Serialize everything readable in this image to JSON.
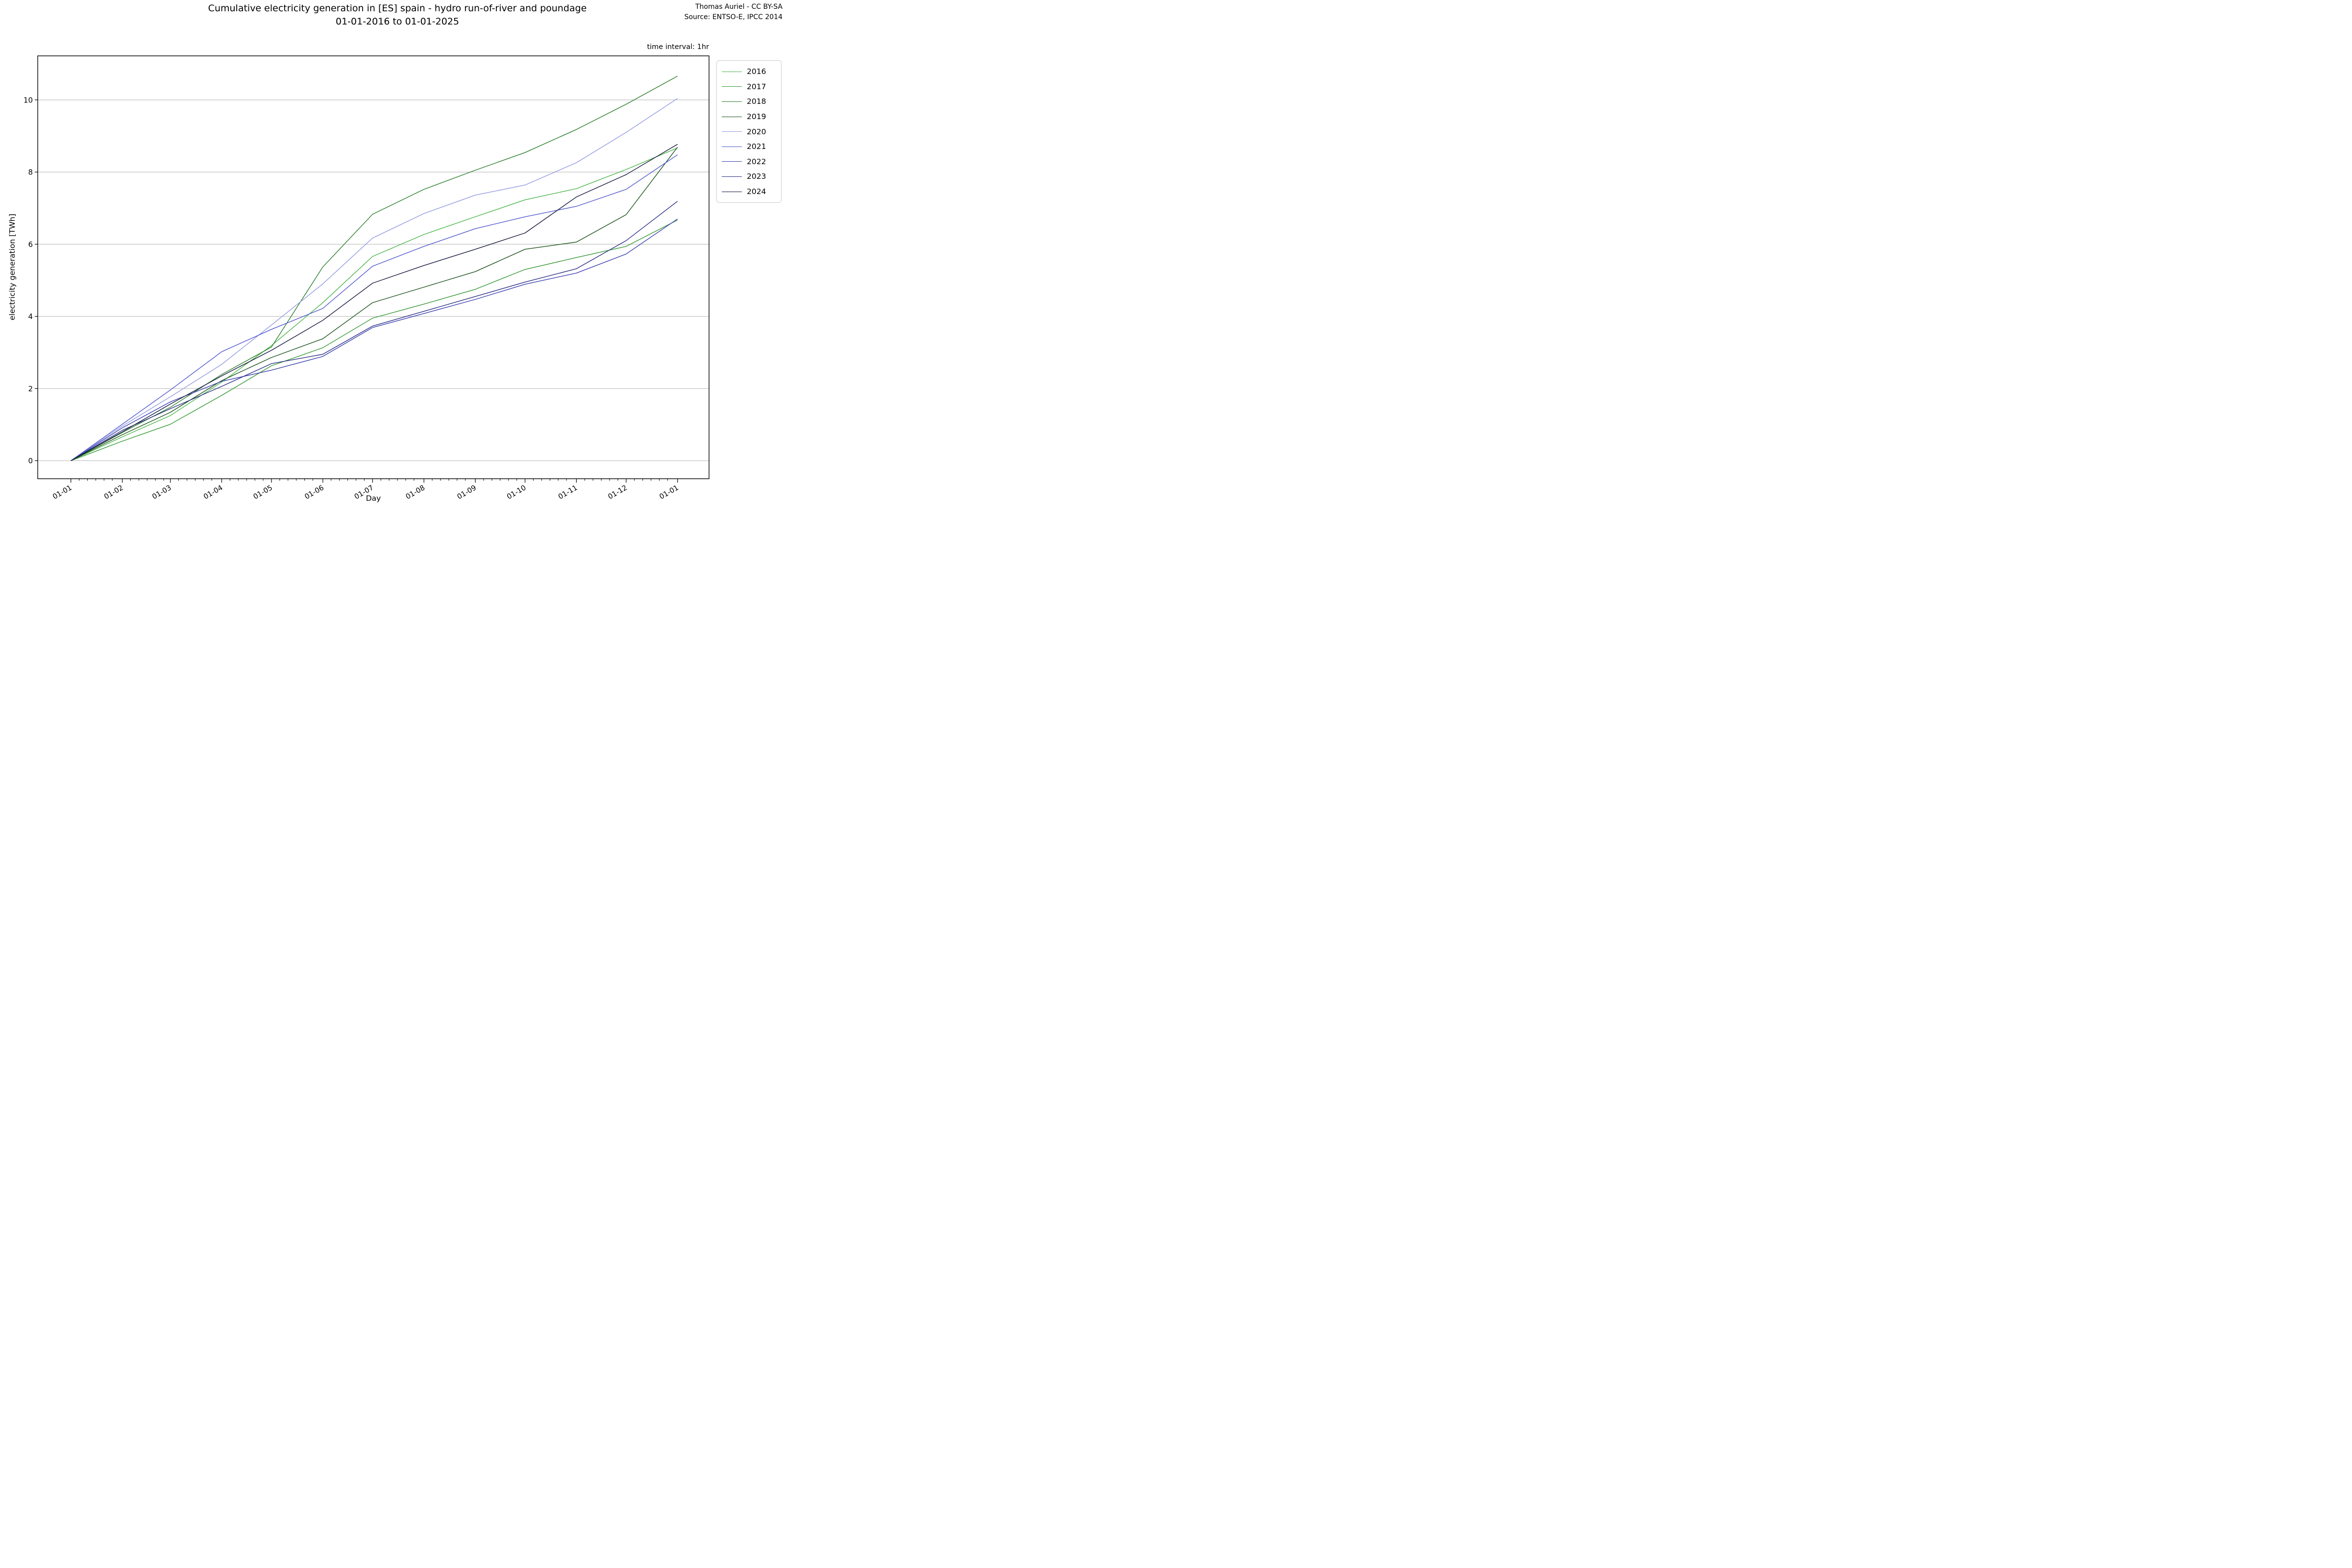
{
  "figure": {
    "title_line1": "Cumulative electricity generation in [ES] spain - hydro run-of-river and poundage",
    "title_line2": "01-01-2016 to 01-01-2025",
    "attribution_line1": "Thomas Auriel - CC BY-SA",
    "attribution_line2": "Source: ENTSO-E, IPCC 2014",
    "annotation": "time interval: 1hr"
  },
  "chart_data": {
    "type": "line",
    "title": "Cumulative electricity generation in [ES] spain - hydro run-of-river and poundage",
    "subtitle": "01-01-2016 to 01-01-2025",
    "xlabel": "Day",
    "ylabel": "electricity generation [TWh]",
    "x_ticklabels": [
      "01-01",
      "01-02",
      "01-03",
      "01-04",
      "01-05",
      "01-06",
      "01-07",
      "01-08",
      "01-09",
      "01-10",
      "01-11",
      "01-12",
      "01-01"
    ],
    "x_day_offsets": [
      0,
      31,
      60,
      91,
      121,
      152,
      182,
      213,
      244,
      274,
      305,
      335,
      366
    ],
    "xlim_days": [
      -20,
      385
    ],
    "yticks": [
      0,
      2,
      4,
      6,
      8,
      10
    ],
    "ylim": [
      -0.5,
      11.22
    ],
    "grid": "horizontal",
    "grid_color": "#b3b3b3",
    "legend_position": "upper right outside",
    "series": [
      {
        "name": "2016",
        "color": "#49b649",
        "values": [
          0,
          0.66,
          1.25,
          2.18,
          3.19,
          4.38,
          5.66,
          6.27,
          6.76,
          7.23,
          7.54,
          8.07,
          8.67
        ]
      },
      {
        "name": "2017",
        "color": "#339933",
        "values": [
          0,
          0.54,
          1.01,
          1.81,
          2.63,
          3.13,
          3.95,
          4.34,
          4.75,
          5.3,
          5.63,
          5.94,
          6.67
        ]
      },
      {
        "name": "2018",
        "color": "#2b7f2b",
        "values": [
          0,
          0.78,
          1.48,
          2.39,
          3.15,
          5.37,
          6.83,
          7.52,
          8.05,
          8.54,
          9.18,
          9.88,
          10.66
        ]
      },
      {
        "name": "2019",
        "color": "#1d521d",
        "values": [
          0,
          0.72,
          1.34,
          2.22,
          2.86,
          3.38,
          4.38,
          4.81,
          5.24,
          5.86,
          6.06,
          6.82,
          8.69
        ]
      },
      {
        "name": "2020",
        "color": "#929ae0",
        "values": [
          0,
          0.96,
          1.77,
          2.67,
          3.76,
          4.9,
          6.17,
          6.85,
          7.36,
          7.64,
          8.26,
          9.1,
          10.04
        ]
      },
      {
        "name": "2021",
        "color": "#5158cf",
        "values": [
          0,
          1.01,
          1.96,
          3.02,
          3.64,
          4.22,
          5.39,
          5.94,
          6.43,
          6.76,
          7.05,
          7.52,
          8.48
        ]
      },
      {
        "name": "2022",
        "color": "#3b40b0",
        "values": [
          0,
          0.91,
          1.63,
          2.2,
          2.51,
          2.89,
          3.69,
          4.08,
          4.47,
          4.89,
          5.2,
          5.73,
          6.7
        ]
      },
      {
        "name": "2023",
        "color": "#2a2d85",
        "values": [
          0,
          0.84,
          1.44,
          2.06,
          2.69,
          2.95,
          3.73,
          4.14,
          4.55,
          4.95,
          5.32,
          6.1,
          7.19
        ]
      },
      {
        "name": "2024",
        "color": "#16183f",
        "values": [
          0,
          0.8,
          1.57,
          2.35,
          3.06,
          3.89,
          4.92,
          5.41,
          5.86,
          6.31,
          7.31,
          7.93,
          8.77
        ]
      }
    ]
  }
}
